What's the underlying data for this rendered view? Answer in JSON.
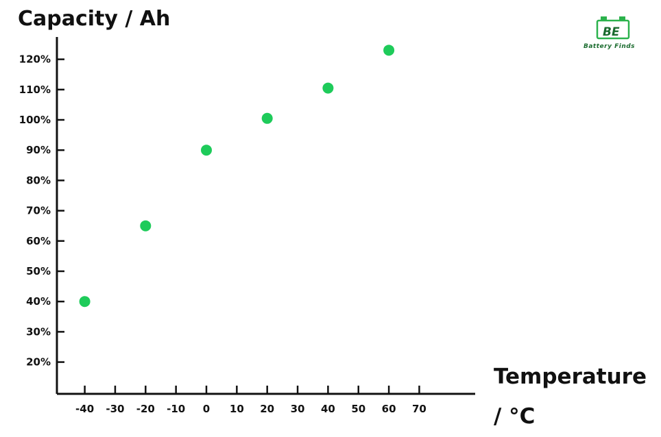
{
  "chart_data": {
    "type": "scatter",
    "title": "Capacity / Ah",
    "xlabel_line1": "Temperature",
    "xlabel_line2": "/ °C",
    "x_ticks": [
      -40,
      -30,
      -20,
      -10,
      0,
      10,
      20,
      30,
      40,
      50,
      60,
      70
    ],
    "y_ticks": [
      "120%",
      "110%",
      "100%",
      "90%",
      "80%",
      "70%",
      "60%",
      "50%",
      "40%",
      "30%",
      "20%"
    ],
    "y_tick_values": [
      120,
      110,
      100,
      90,
      80,
      70,
      60,
      50,
      40,
      30,
      20
    ],
    "xlim": [
      -50,
      90
    ],
    "ylim": [
      10,
      130
    ],
    "grid": false,
    "point_color": "#1ecb5a",
    "series": [
      {
        "points": [
          {
            "x": -40,
            "y": 40
          },
          {
            "x": -20,
            "y": 65
          },
          {
            "x": 0,
            "y": 90
          },
          {
            "x": 20,
            "y": 100.5
          },
          {
            "x": 40,
            "y": 110.5
          },
          {
            "x": 60,
            "y": 123
          }
        ]
      }
    ]
  },
  "logo": {
    "mark": "BE",
    "text": "Battery Finds"
  }
}
